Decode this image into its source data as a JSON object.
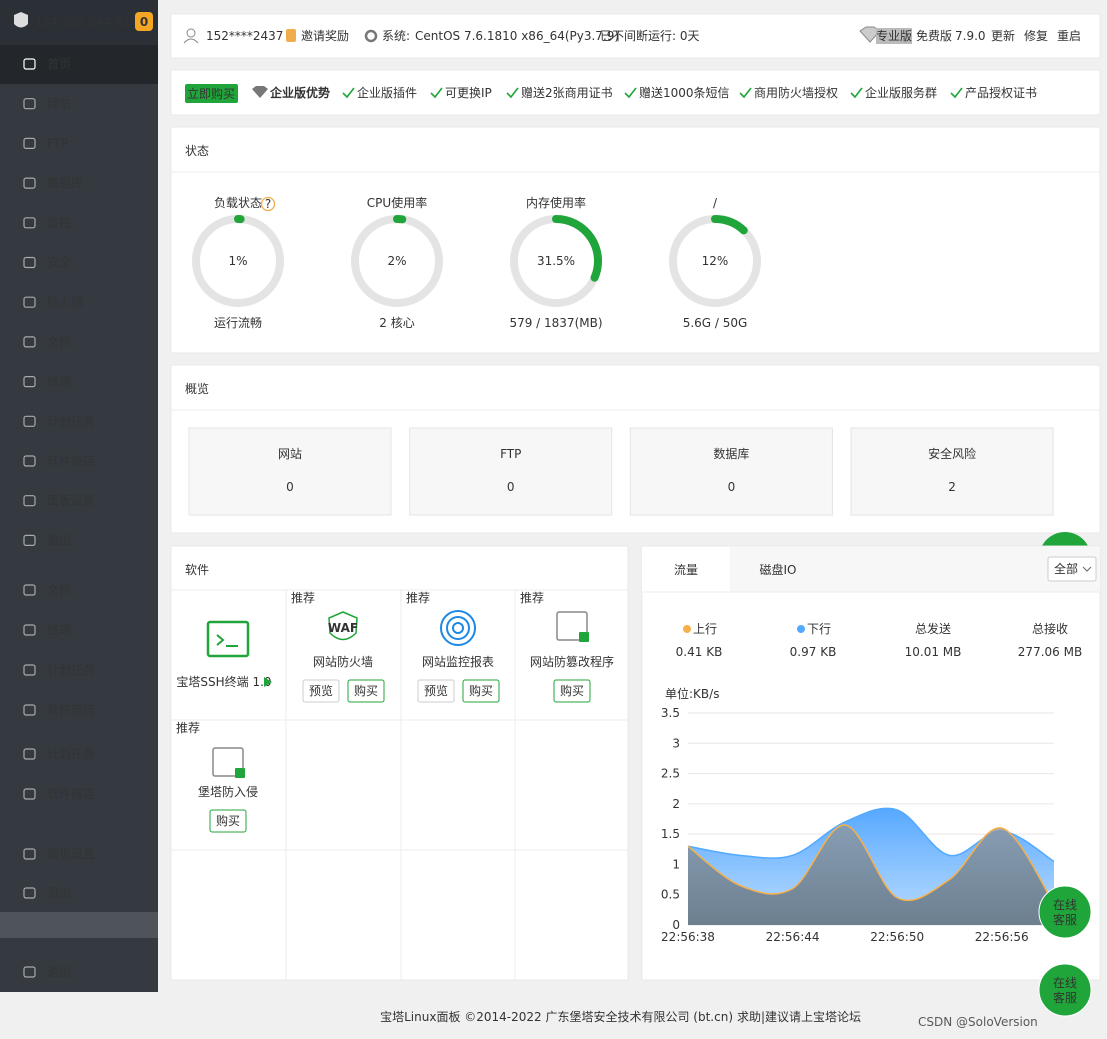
{
  "sidebar": {
    "server_ip": "124.222.244.61",
    "badge": "0",
    "menu": [
      "首页",
      "网站",
      "FTP",
      "数据库",
      "监控",
      "安全",
      "防火墙",
      "文件",
      "终端",
      "计划任务",
      "软件商店",
      "面板设置",
      "退出"
    ],
    "menu_ghost": [
      "文件",
      "终端",
      "计划任务",
      "软件商店",
      "计划任务",
      "软件商店",
      "面板设置",
      "退出",
      "退出"
    ]
  },
  "header": {
    "user": "152****2437",
    "invite": "邀请奖励",
    "system_label": "系统:",
    "os": "CentOS 7.6.1810 x86_64(Py3.7.9)",
    "uptime": "已不间断运行: 0天",
    "pro_tag": "专业版",
    "edition": "免费版",
    "version": "7.9.0",
    "actions": [
      "更新",
      "修复",
      "重启"
    ]
  },
  "promo": {
    "buy": "立即购买",
    "title": "企业版优势",
    "items": [
      "企业版插件",
      "可更换IP",
      "赠送2张商用证书",
      "赠送1000条短信",
      "商用防火墙授权",
      "企业版服务群",
      "产品授权证书"
    ]
  },
  "status": {
    "title": "状态",
    "gauges": [
      {
        "label": "负载状态",
        "value": 1,
        "value_label": "1%",
        "detail": "运行流畅"
      },
      {
        "label": "CPU使用率",
        "value": 2,
        "value_label": "2%",
        "detail": "2 核心"
      },
      {
        "label": "内存使用率",
        "value": 31.5,
        "value_label": "31.5%",
        "detail": "579 / 1837(MB)"
      },
      {
        "label": "/",
        "value": 12,
        "value_label": "12%",
        "detail": "5.6G / 50G"
      }
    ]
  },
  "overview": {
    "title": "概览",
    "cards": [
      {
        "label": "网站",
        "value": 0
      },
      {
        "label": "FTP",
        "value": 0
      },
      {
        "label": "数据库",
        "value": 0
      },
      {
        "label": "安全风险",
        "value": 2
      }
    ]
  },
  "software": {
    "title": "软件",
    "items": [
      {
        "name": "宝塔SSH终端 1.0"
      },
      {
        "tag": "推荐",
        "name": "网站防火墙",
        "buttons": [
          "预览",
          "购买"
        ]
      },
      {
        "tag": "推荐",
        "name": "网站监控报表",
        "buttons": [
          "预览",
          "购买"
        ]
      },
      {
        "tag": "推荐",
        "name": "网站防篡改程序",
        "buttons": [
          "购买"
        ]
      },
      {
        "tag": "推荐",
        "name": "堡塔防入侵",
        "buttons": [
          "购买"
        ]
      }
    ]
  },
  "traffic": {
    "tabs": [
      "流量",
      "磁盘IO"
    ],
    "filter": "全部",
    "stats": [
      {
        "value": "0.41 KB"
      },
      {
        "value": "0.97 KB"
      },
      {
        "label": "总发送",
        "value": "10.01 MB"
      },
      {
        "label": "总接收",
        "value": "277.06 MB"
      }
    ],
    "chart": {
      "type": "area",
      "unit_label": "单位:KB/s",
      "categories": [
        "22:56:38",
        null,
        "22:56:44",
        null,
        "22:56:50",
        null,
        "22:56:56",
        null
      ],
      "series": [
        {
          "name": "上行",
          "color": "#f7b04a",
          "values": [
            1.3,
            0.65,
            0.6,
            1.65,
            0.45,
            0.75,
            1.6,
            0.35
          ]
        },
        {
          "name": "下行",
          "color": "#52a9ff",
          "values": [
            1.3,
            1.15,
            1.15,
            1.7,
            1.9,
            1.15,
            1.55,
            1.05
          ]
        }
      ],
      "ylim": [
        0,
        3.5
      ],
      "yticks": [
        0,
        0.5,
        1,
        1.5,
        2,
        2.5,
        3,
        3.5
      ],
      "grid": true
    }
  },
  "support": {
    "label": [
      "在线",
      "客服"
    ]
  },
  "footer": {
    "copyright": "宝塔Linux面板 ©2014-2022 广东堡塔安全技术有限公司 (bt.cn)",
    "link": "求助|建议请上宝塔论坛"
  },
  "watermark": "CSDN @SoloVersion"
}
